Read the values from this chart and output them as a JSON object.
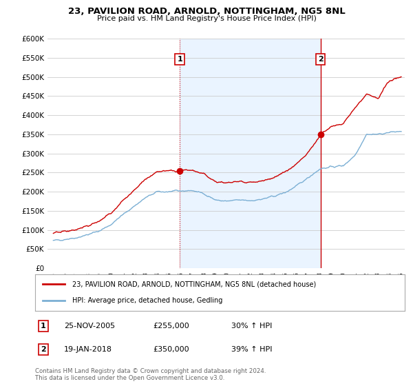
{
  "title": "23, PAVILION ROAD, ARNOLD, NOTTINGHAM, NG5 8NL",
  "subtitle": "Price paid vs. HM Land Registry's House Price Index (HPI)",
  "ylim": [
    0,
    600000
  ],
  "yticks": [
    0,
    50000,
    100000,
    150000,
    200000,
    250000,
    300000,
    350000,
    400000,
    450000,
    500000,
    550000,
    600000
  ],
  "xmin_year": 1995,
  "xmax_year": 2025,
  "xtick_years": [
    1995,
    1996,
    1997,
    1998,
    1999,
    2000,
    2001,
    2002,
    2003,
    2004,
    2005,
    2006,
    2007,
    2008,
    2009,
    2010,
    2011,
    2012,
    2013,
    2014,
    2015,
    2016,
    2017,
    2018,
    2019,
    2020,
    2021,
    2022,
    2023,
    2024,
    2025
  ],
  "sale1_date": 2005.9,
  "sale1_price": 255000,
  "sale1_label": "1",
  "sale1_date_str": "25-NOV-2005",
  "sale1_price_str": "£255,000",
  "sale1_hpi_str": "30% ↑ HPI",
  "sale2_date": 2018.05,
  "sale2_price": 350000,
  "sale2_label": "2",
  "sale2_date_str": "19-JAN-2018",
  "sale2_price_str": "£350,000",
  "sale2_hpi_str": "39% ↑ HPI",
  "hpi_color": "#7bafd4",
  "sale_color": "#cc0000",
  "vline1_color": "#cc0000",
  "vline2_color": "#cc0000",
  "shade_color": "#ddeeff",
  "bg_color": "#ffffff",
  "grid_color": "#cccccc",
  "legend_label_red": "23, PAVILION ROAD, ARNOLD, NOTTINGHAM, NG5 8NL (detached house)",
  "legend_label_blue": "HPI: Average price, detached house, Gedling",
  "footnote": "Contains HM Land Registry data © Crown copyright and database right 2024.\nThis data is licensed under the Open Government Licence v3.0.",
  "hpi_points_x": [
    1995,
    1996,
    1997,
    1998,
    1999,
    2000,
    2001,
    2002,
    2003,
    2004,
    2005,
    2006,
    2007,
    2008,
    2009,
    2010,
    2011,
    2012,
    2013,
    2014,
    2015,
    2016,
    2017,
    2018,
    2019,
    2020,
    2021,
    2022,
    2023,
    2024,
    2025
  ],
  "hpi_points_y": [
    72000,
    76000,
    80000,
    88000,
    98000,
    115000,
    140000,
    163000,
    185000,
    200000,
    200000,
    202000,
    203000,
    195000,
    178000,
    175000,
    178000,
    177000,
    180000,
    188000,
    198000,
    215000,
    238000,
    260000,
    265000,
    268000,
    295000,
    350000,
    350000,
    355000,
    358000
  ],
  "red_points_x": [
    1995,
    1996,
    1997,
    1998,
    1999,
    2000,
    2001,
    2002,
    2003,
    2004,
    2005,
    2005.9,
    2006,
    2007,
    2008,
    2009,
    2010,
    2011,
    2012,
    2013,
    2014,
    2015,
    2016,
    2017,
    2018,
    2018.05,
    2019,
    2020,
    2021,
    2022,
    2023,
    2024,
    2025
  ],
  "red_points_y": [
    91000,
    96000,
    101000,
    111000,
    124000,
    146000,
    177000,
    206000,
    234000,
    253000,
    255000,
    255000,
    258000,
    257000,
    246000,
    225000,
    222000,
    226000,
    224000,
    228000,
    238000,
    251000,
    272000,
    305000,
    348000,
    350000,
    370000,
    380000,
    420000,
    455000,
    445000,
    490000,
    500000
  ]
}
